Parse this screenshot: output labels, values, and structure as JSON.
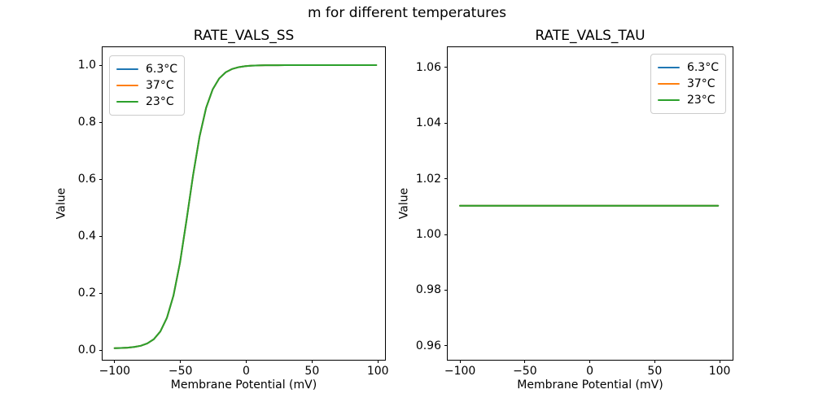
{
  "figure": {
    "suptitle": "m for different temperatures",
    "background_color": "#ffffff",
    "text_color": "#000000"
  },
  "subplots": [
    {
      "title": "RATE_VALS_SS",
      "xlabel": "Membrane Potential (mV)",
      "ylabel": "Value",
      "xtick_labels": [
        "−100",
        "−50",
        "0",
        "50",
        "100"
      ],
      "xtick_values": [
        -100,
        -50,
        0,
        50,
        100
      ],
      "ytick_labels": [
        "0.0",
        "0.2",
        "0.4",
        "0.6",
        "0.8",
        "1.0"
      ],
      "ytick_values": [
        0.0,
        0.2,
        0.4,
        0.6,
        0.8,
        1.0
      ],
      "legend": {
        "location": "upper-left",
        "entries": [
          {
            "label": "6.3°C",
            "color": "#1f77b4"
          },
          {
            "label": "37°C",
            "color": "#ff7f0e"
          },
          {
            "label": "23°C",
            "color": "#2ca02c"
          }
        ]
      }
    },
    {
      "title": "RATE_VALS_TAU",
      "xlabel": "Membrane Potential (mV)",
      "ylabel": "Value",
      "xtick_labels": [
        "−100",
        "−50",
        "0",
        "50",
        "100"
      ],
      "xtick_values": [
        -100,
        -50,
        0,
        50,
        100
      ],
      "ytick_labels": [
        "0.96",
        "0.98",
        "1.00",
        "1.02",
        "1.04",
        "1.06"
      ],
      "ytick_values": [
        0.96,
        0.98,
        1.0,
        1.02,
        1.04,
        1.06
      ],
      "legend": {
        "location": "upper-right",
        "entries": [
          {
            "label": "6.3°C",
            "color": "#1f77b4"
          },
          {
            "label": "37°C",
            "color": "#ff7f0e"
          },
          {
            "label": "23°C",
            "color": "#2ca02c"
          }
        ]
      }
    }
  ],
  "chart_data": [
    {
      "type": "line",
      "title": "RATE_VALS_SS",
      "xlabel": "Membrane Potential (mV)",
      "ylabel": "Value",
      "xlim": [
        -110,
        110
      ],
      "ylim": [
        -0.04,
        1.06
      ],
      "grid": false,
      "legend_position": "upper-left",
      "x": [
        -100,
        -95,
        -90,
        -85,
        -80,
        -75,
        -70,
        -65,
        -60,
        -55,
        -50,
        -45,
        -40,
        -35,
        -30,
        -25,
        -20,
        -15,
        -10,
        -5,
        0,
        5,
        10,
        15,
        20,
        25,
        30,
        35,
        40,
        45,
        50,
        55,
        60,
        65,
        70,
        75,
        80,
        85,
        90,
        95,
        100
      ],
      "series": [
        {
          "name": "6.3°C",
          "color": "#1f77b4",
          "values": [
            0.0007,
            0.0014,
            0.0026,
            0.0049,
            0.0092,
            0.0173,
            0.0324,
            0.0598,
            0.1077,
            0.1863,
            0.3029,
            0.452,
            0.6105,
            0.7485,
            0.8496,
            0.9147,
            0.9532,
            0.9748,
            0.9866,
            0.9929,
            0.9962,
            0.998,
            0.9989,
            0.9994,
            0.9997,
            0.9998,
            0.9999,
            0.9999,
            1.0,
            1.0,
            1.0,
            1.0,
            1.0,
            1.0,
            1.0,
            1.0,
            1.0,
            1.0,
            1.0,
            1.0,
            1.0
          ]
        },
        {
          "name": "37°C",
          "color": "#ff7f0e",
          "values": [
            0.0007,
            0.0014,
            0.0026,
            0.0049,
            0.0092,
            0.0173,
            0.0324,
            0.0598,
            0.1077,
            0.1863,
            0.3029,
            0.452,
            0.6105,
            0.7485,
            0.8496,
            0.9147,
            0.9532,
            0.9748,
            0.9866,
            0.9929,
            0.9962,
            0.998,
            0.9989,
            0.9994,
            0.9997,
            0.9998,
            0.9999,
            0.9999,
            1.0,
            1.0,
            1.0,
            1.0,
            1.0,
            1.0,
            1.0,
            1.0,
            1.0,
            1.0,
            1.0,
            1.0,
            1.0
          ]
        },
        {
          "name": "23°C",
          "color": "#2ca02c",
          "values": [
            0.0007,
            0.0014,
            0.0026,
            0.0049,
            0.0092,
            0.0173,
            0.0324,
            0.0598,
            0.1077,
            0.1863,
            0.3029,
            0.452,
            0.6105,
            0.7485,
            0.8496,
            0.9147,
            0.9532,
            0.9748,
            0.9866,
            0.9929,
            0.9962,
            0.998,
            0.9989,
            0.9994,
            0.9997,
            0.9998,
            0.9999,
            0.9999,
            1.0,
            1.0,
            1.0,
            1.0,
            1.0,
            1.0,
            1.0,
            1.0,
            1.0,
            1.0,
            1.0,
            1.0,
            1.0
          ]
        }
      ],
      "note": "Sigmoid steady-state curve (midpoint ≈ −43 mV); all three temperature curves overlap exactly, so only the last-drawn green (23°C) line is visible."
    },
    {
      "type": "line",
      "title": "RATE_VALS_TAU",
      "xlabel": "Membrane Potential (mV)",
      "ylabel": "Value",
      "xlim": [
        -110,
        110
      ],
      "ylim": [
        0.954,
        1.067
      ],
      "grid": false,
      "legend_position": "upper-right",
      "x": [
        -100,
        100
      ],
      "series": [
        {
          "name": "6.3°C",
          "color": "#1f77b4",
          "values": [
            1.01,
            1.01
          ]
        },
        {
          "name": "37°C",
          "color": "#ff7f0e",
          "values": [
            1.01,
            1.01
          ]
        },
        {
          "name": "23°C",
          "color": "#2ca02c",
          "values": [
            1.01,
            1.01
          ]
        }
      ],
      "note": "Constant line at 1.01 across −100..100 mV; all three temperature curves overlap exactly, so only the green (23°C) line is visible."
    }
  ]
}
